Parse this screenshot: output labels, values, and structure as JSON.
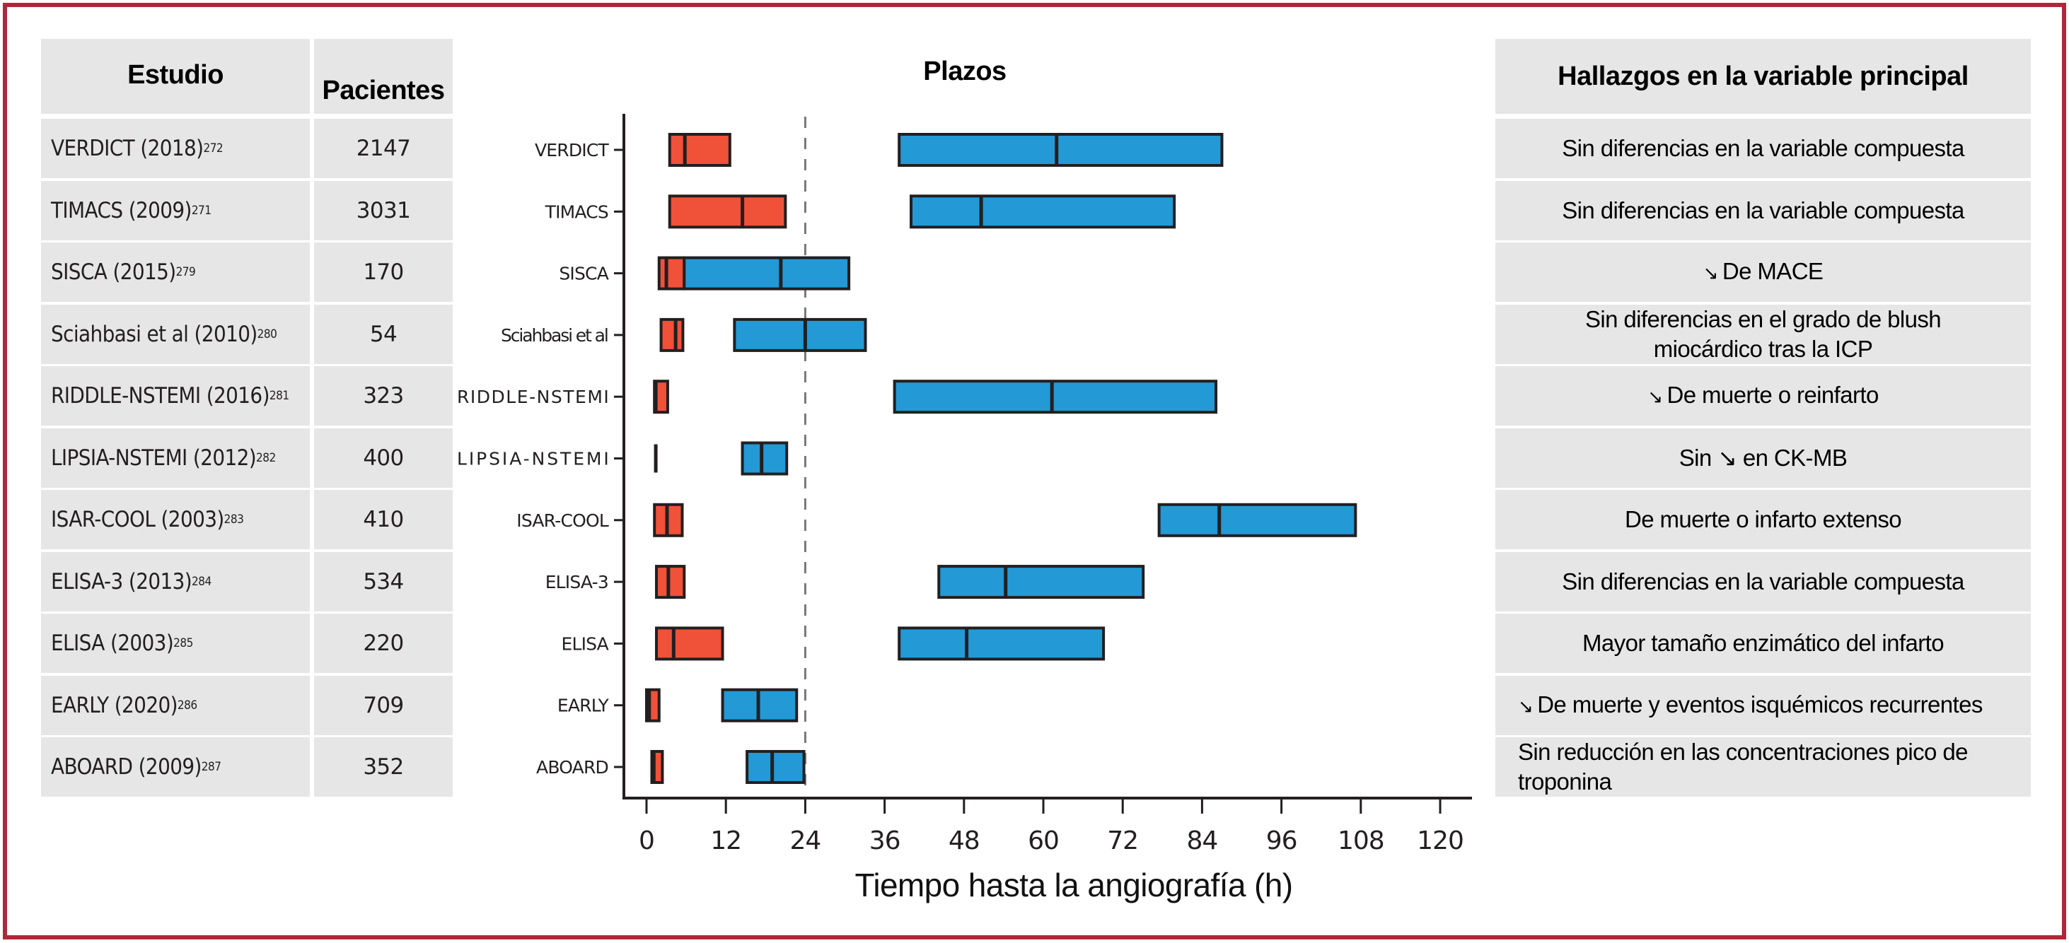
{
  "colors": {
    "frame": "#b0273a",
    "cell_bg": "#e6e6e6",
    "early_strategy": "#ef5139",
    "delayed_strategy": "#2399d6",
    "outline": "#231f20",
    "reference_line": "#777777"
  },
  "left_table": {
    "headers": {
      "study": "Estudio",
      "patients": "Pacientes"
    },
    "rows": [
      {
        "study": "VERDICT (2018)",
        "ref": "272",
        "patients": "2147"
      },
      {
        "study": "TIMACS (2009)",
        "ref": "271",
        "patients": "3031"
      },
      {
        "study": "SISCA (2015)",
        "ref": "279",
        "patients": "170"
      },
      {
        "study": "Sciahbasi et al (2010)",
        "ref": "280",
        "patients": "54"
      },
      {
        "study": "RIDDLE-NSTEMI (2016)",
        "ref": "281",
        "patients": "323"
      },
      {
        "study": "LIPSIA-NSTEMI (2012)",
        "ref": "282",
        "patients": "400"
      },
      {
        "study": "ISAR-COOL (2003)",
        "ref": "283",
        "patients": "410"
      },
      {
        "study": "ELISA-3 (2013)",
        "ref": "284",
        "patients": "534"
      },
      {
        "study": "ELISA (2003)",
        "ref": "285",
        "patients": "220"
      },
      {
        "study": "EARLY (2020)",
        "ref": "286",
        "patients": "709"
      },
      {
        "study": "ABOARD (2009)",
        "ref": "287",
        "patients": "352"
      }
    ]
  },
  "right_table": {
    "header": "Hallazgos en la variable principal",
    "rows": [
      {
        "arrow": "",
        "text": "Sin diferencias en la variable compuesta"
      },
      {
        "arrow": "",
        "text": "Sin diferencias en la variable compuesta"
      },
      {
        "arrow": "↘",
        "text": "De MACE"
      },
      {
        "arrow": "",
        "text": "Sin diferencias en el grado de blush miocárdico tras la ICP"
      },
      {
        "arrow": "↘",
        "text": "De muerte o reinfarto"
      },
      {
        "arrow": "",
        "text": "Sin ↘  en CK-MB"
      },
      {
        "arrow": "",
        "text": "De muerte o infarto extenso"
      },
      {
        "arrow": "",
        "text": "Sin diferencias en la variable compuesta"
      },
      {
        "arrow": "",
        "text": "Mayor tamaño enzimático del infarto"
      },
      {
        "arrow": "↘",
        "text": "De muerte y eventos isquémicos recurrentes"
      },
      {
        "arrow": "",
        "text": "Sin reducción en las concentraciones pico de troponina"
      }
    ]
  },
  "chart_data": {
    "type": "bar",
    "subtype": "horizontal floating range bars with median",
    "title": "Plazos",
    "xlabel": "Tiempo hasta la angiografía (h)",
    "ylabel": "",
    "xlim": [
      0,
      120
    ],
    "xticks": [
      0,
      12,
      24,
      36,
      48,
      60,
      72,
      84,
      96,
      108,
      120
    ],
    "xtick_labels": [
      "0",
      "12",
      "24",
      "36",
      "48",
      "60",
      "72",
      "84",
      "96",
      "108",
      "120"
    ],
    "reference_line": {
      "x": 24,
      "style": "dashed"
    },
    "grid": false,
    "categories": [
      "VERDICT",
      "TIMACS",
      "SISCA",
      "Sciahbasi et al",
      "RIDDLE-NSTEMI",
      "LIPSIA-NSTEMI",
      "ISAR-COOL",
      "ELISA-3",
      "ELISA",
      "EARLY",
      "ABOARD"
    ],
    "series": [
      {
        "name": "early",
        "color": "#ef5139",
        "ranges": [
          [
            3.5,
            5.8,
            12.6
          ],
          [
            3.5,
            14.5,
            21.0
          ],
          [
            1.9,
            3.0,
            5.7
          ],
          [
            2.2,
            4.4,
            5.5
          ],
          [
            1.2,
            1.4,
            3.2
          ],
          [
            1.4,
            1.4,
            1.4
          ],
          [
            1.2,
            3.1,
            5.4
          ],
          [
            1.5,
            3.3,
            5.7
          ],
          [
            1.5,
            4.1,
            11.5
          ],
          [
            0.0,
            0.4,
            1.9
          ],
          [
            0.8,
            1.1,
            2.4
          ]
        ]
      },
      {
        "name": "delayed",
        "color": "#2399d6",
        "ranges": [
          [
            38.2,
            62.0,
            87.0
          ],
          [
            40.0,
            50.6,
            79.8
          ],
          [
            5.7,
            20.3,
            30.6
          ],
          [
            13.3,
            24.0,
            33.1
          ],
          [
            37.5,
            61.3,
            86.1
          ],
          [
            14.5,
            17.4,
            21.2
          ],
          [
            77.5,
            86.6,
            107.2
          ],
          [
            44.2,
            54.3,
            75.1
          ],
          [
            38.2,
            48.4,
            69.1
          ],
          [
            11.5,
            16.9,
            22.7
          ],
          [
            15.2,
            19.0,
            23.8
          ]
        ]
      }
    ]
  }
}
